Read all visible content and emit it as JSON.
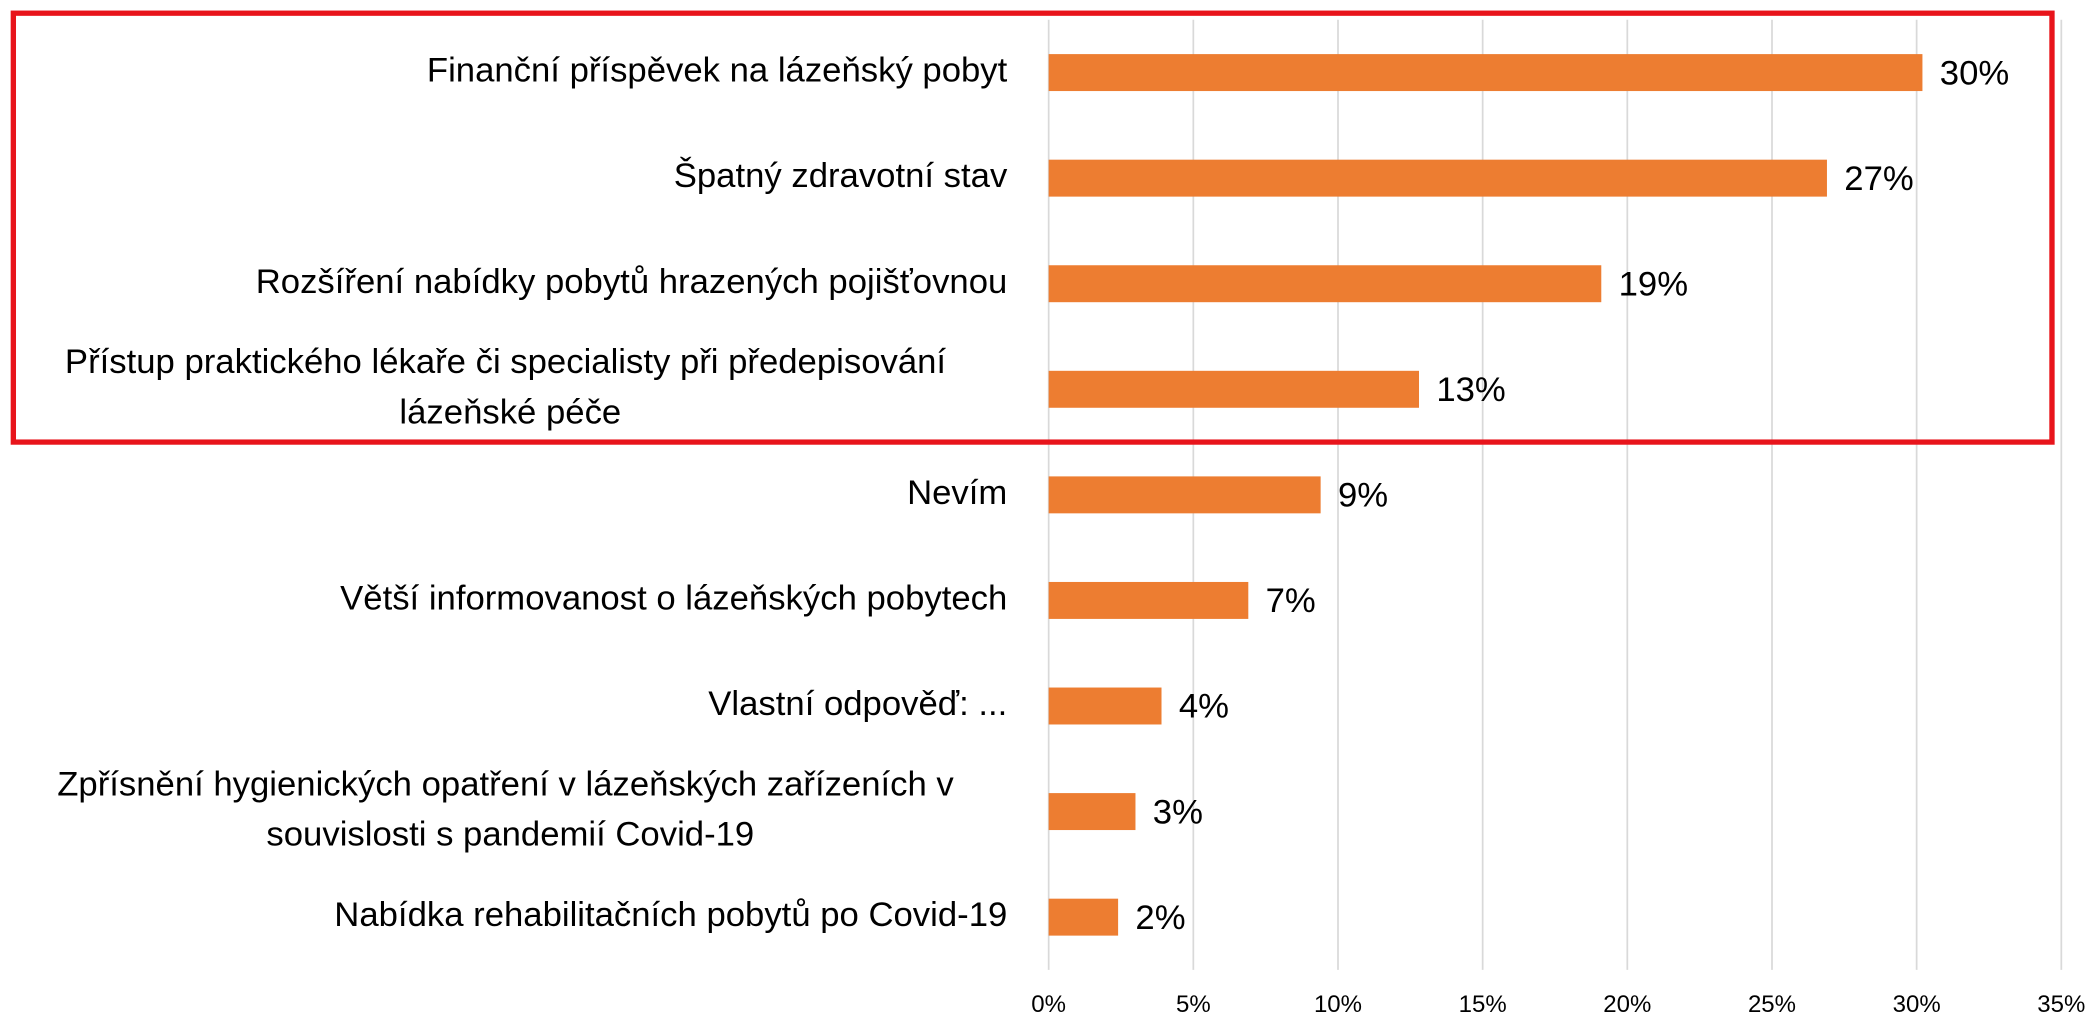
{
  "chart_data": {
    "type": "bar",
    "orientation": "horizontal",
    "categories": [
      "Finanční příspěvek na lázeňský pobyt",
      "Špatný zdravotní stav",
      "Rozšíření nabídky pobytů hrazených pojišťovnou",
      "Přístup praktického lékaře či specialisty při předepisování lázeňské péče",
      "Nevím",
      "Větší informovanost o lázeňských pobytech",
      "Vlastní odpověď: ...",
      "Zpřísnění hygienických opatření v lázeňských zařízeních v souvislosti s pandemií Covid-19",
      "Nabídka rehabilitačních pobytů po Covid-19"
    ],
    "values": [
      30.2,
      26.9,
      19.1,
      12.8,
      9.4,
      6.9,
      3.9,
      3.0,
      2.4
    ],
    "value_labels": [
      "30%",
      "27%",
      "19%",
      "13%",
      "9%",
      "7%",
      "4%",
      "3%",
      "2%"
    ],
    "color": "#ed7d31",
    "xlim": [
      0,
      35
    ],
    "xticks": [
      {
        "value": 0,
        "label": "0%"
      },
      {
        "value": 5,
        "label": "5%"
      },
      {
        "value": 10,
        "label": "10%"
      },
      {
        "value": 15,
        "label": "15%"
      },
      {
        "value": 20,
        "label": "20%"
      },
      {
        "value": 25,
        "label": "25%"
      },
      {
        "value": 30,
        "label": "30%"
      },
      {
        "value": 35,
        "label": "35%"
      }
    ],
    "grid": true
  }
}
